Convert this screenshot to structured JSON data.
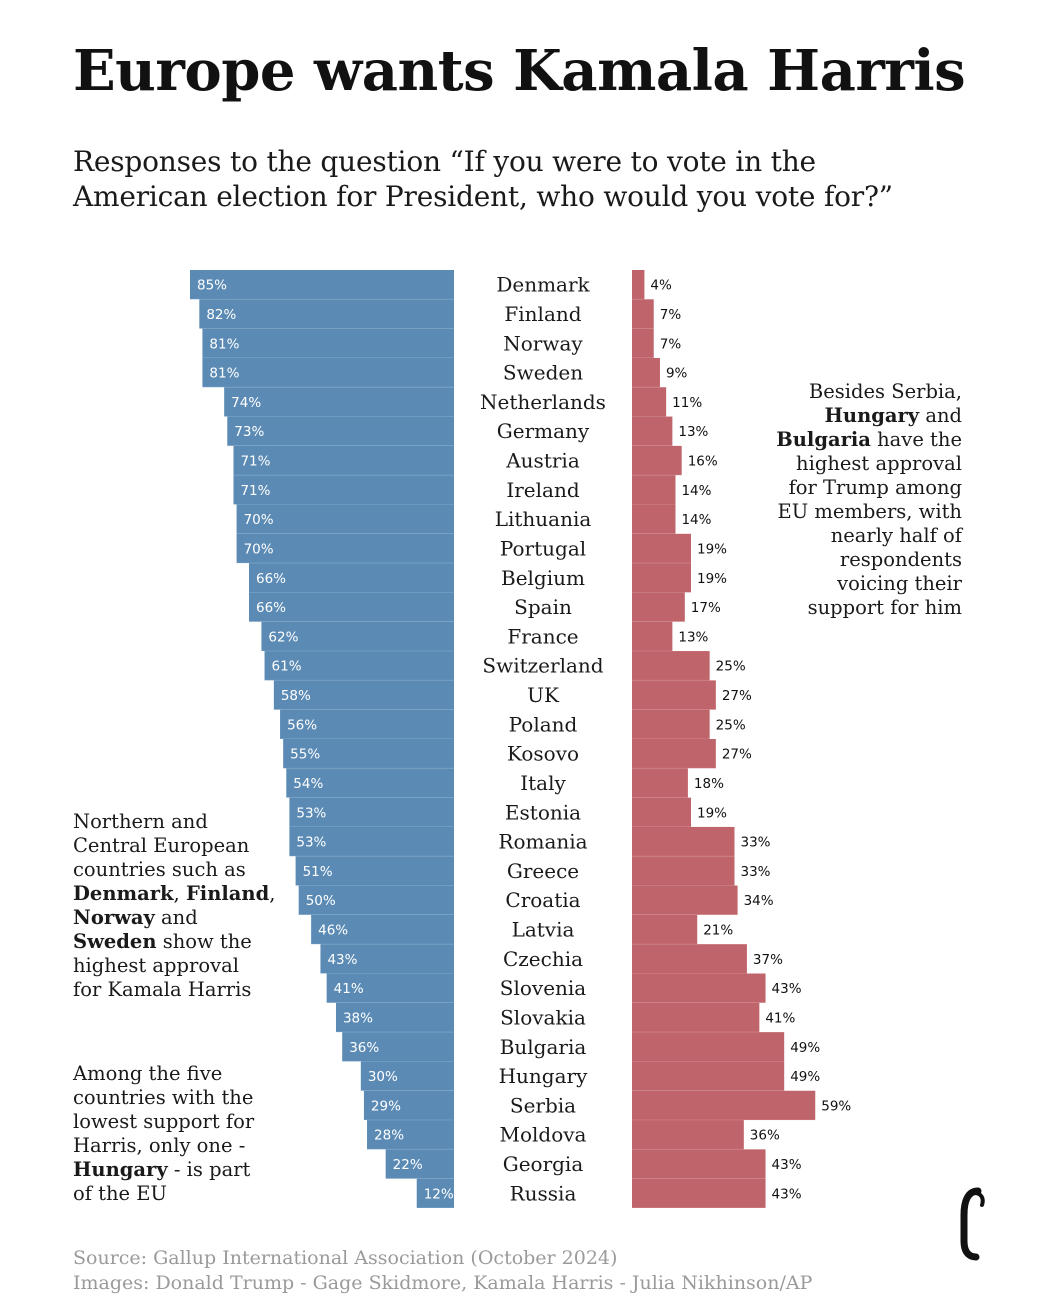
{
  "title": "Europe wants Kamala Harris",
  "subtitle_line1": "Responses to the question “If you were to vote in the",
  "subtitle_line2": "American election for President, who would you vote for?”",
  "annotations": {
    "right": [
      {
        "text": "Besides Serbia,",
        "bold": false,
        "br": true
      },
      {
        "text": "Hungary",
        "bold": true
      },
      {
        "text": " and",
        "bold": false,
        "br": true
      },
      {
        "text": "Bulgaria",
        "bold": true
      },
      {
        "text": " have the",
        "bold": false,
        "br": true
      },
      {
        "text": "highest approval",
        "bold": false,
        "br": true
      },
      {
        "text": "for Trump among",
        "bold": false,
        "br": true
      },
      {
        "text": "EU members, with",
        "bold": false,
        "br": true
      },
      {
        "text": "nearly half of",
        "bold": false,
        "br": true
      },
      {
        "text": "respondents",
        "bold": false,
        "br": true
      },
      {
        "text": "voicing their",
        "bold": false,
        "br": true
      },
      {
        "text": "support for him",
        "bold": false
      }
    ],
    "left_top": [
      {
        "text": "Northern and",
        "bold": false,
        "br": true
      },
      {
        "text": "Central European",
        "bold": false,
        "br": true
      },
      {
        "text": "countries such as",
        "bold": false,
        "br": true
      },
      {
        "text": "Denmark",
        "bold": true
      },
      {
        "text": ", ",
        "bold": false
      },
      {
        "text": "Finland",
        "bold": true
      },
      {
        "text": ",",
        "bold": false,
        "br": true
      },
      {
        "text": "Norway",
        "bold": true
      },
      {
        "text": " and",
        "bold": false,
        "br": true
      },
      {
        "text": "Sweden",
        "bold": true
      },
      {
        "text": " show the",
        "bold": false,
        "br": true
      },
      {
        "text": "highest approval",
        "bold": false,
        "br": true
      },
      {
        "text": "for Kamala Harris",
        "bold": false
      }
    ],
    "left_bottom": [
      {
        "text": "Among the five",
        "bold": false,
        "br": true
      },
      {
        "text": "countries with the",
        "bold": false,
        "br": true
      },
      {
        "text": "lowest support for",
        "bold": false,
        "br": true
      },
      {
        "text": "Harris, only one -",
        "bold": false,
        "br": true
      },
      {
        "text": "Hungary",
        "bold": true
      },
      {
        "text": " - is part",
        "bold": false,
        "br": true
      },
      {
        "text": "of the EU",
        "bold": false
      }
    ]
  },
  "source_line": "Source: Gallup International Association (October 2024)",
  "images_credit": "Images: Donald Trump - Gage Skidmore, Kamala Harris - Julia Nikhinson/AP",
  "colors": {
    "harris_bar": "#5b8bb5",
    "trump_bar": "#c0646b",
    "harris_photo": "#1f3c57",
    "trump_photo": "#4a1f24"
  },
  "chart_data": {
    "type": "bar",
    "orientation": "horizontal-diverging",
    "xlim": [
      0,
      100
    ],
    "categories": [
      "Denmark",
      "Finland",
      "Norway",
      "Sweden",
      "Netherlands",
      "Germany",
      "Austria",
      "Ireland",
      "Lithuania",
      "Portugal",
      "Belgium",
      "Spain",
      "France",
      "Switzerland",
      "UK",
      "Poland",
      "Kosovo",
      "Italy",
      "Estonia",
      "Romania",
      "Greece",
      "Croatia",
      "Latvia",
      "Czechia",
      "Slovenia",
      "Slovakia",
      "Bulgaria",
      "Hungary",
      "Serbia",
      "Moldova",
      "Georgia",
      "Russia"
    ],
    "series": [
      {
        "values": [
          85,
          82,
          81,
          81,
          74,
          73,
          71,
          71,
          70,
          70,
          66,
          66,
          62,
          61,
          58,
          56,
          55,
          54,
          53,
          53,
          51,
          50,
          46,
          43,
          41,
          38,
          36,
          30,
          29,
          28,
          22,
          12
        ]
      },
      {
        "values": [
          4,
          7,
          7,
          9,
          11,
          13,
          16,
          14,
          14,
          19,
          19,
          17,
          13,
          25,
          27,
          25,
          27,
          18,
          19,
          33,
          33,
          34,
          21,
          37,
          43,
          41,
          49,
          49,
          59,
          36,
          43,
          43
        ]
      }
    ]
  }
}
